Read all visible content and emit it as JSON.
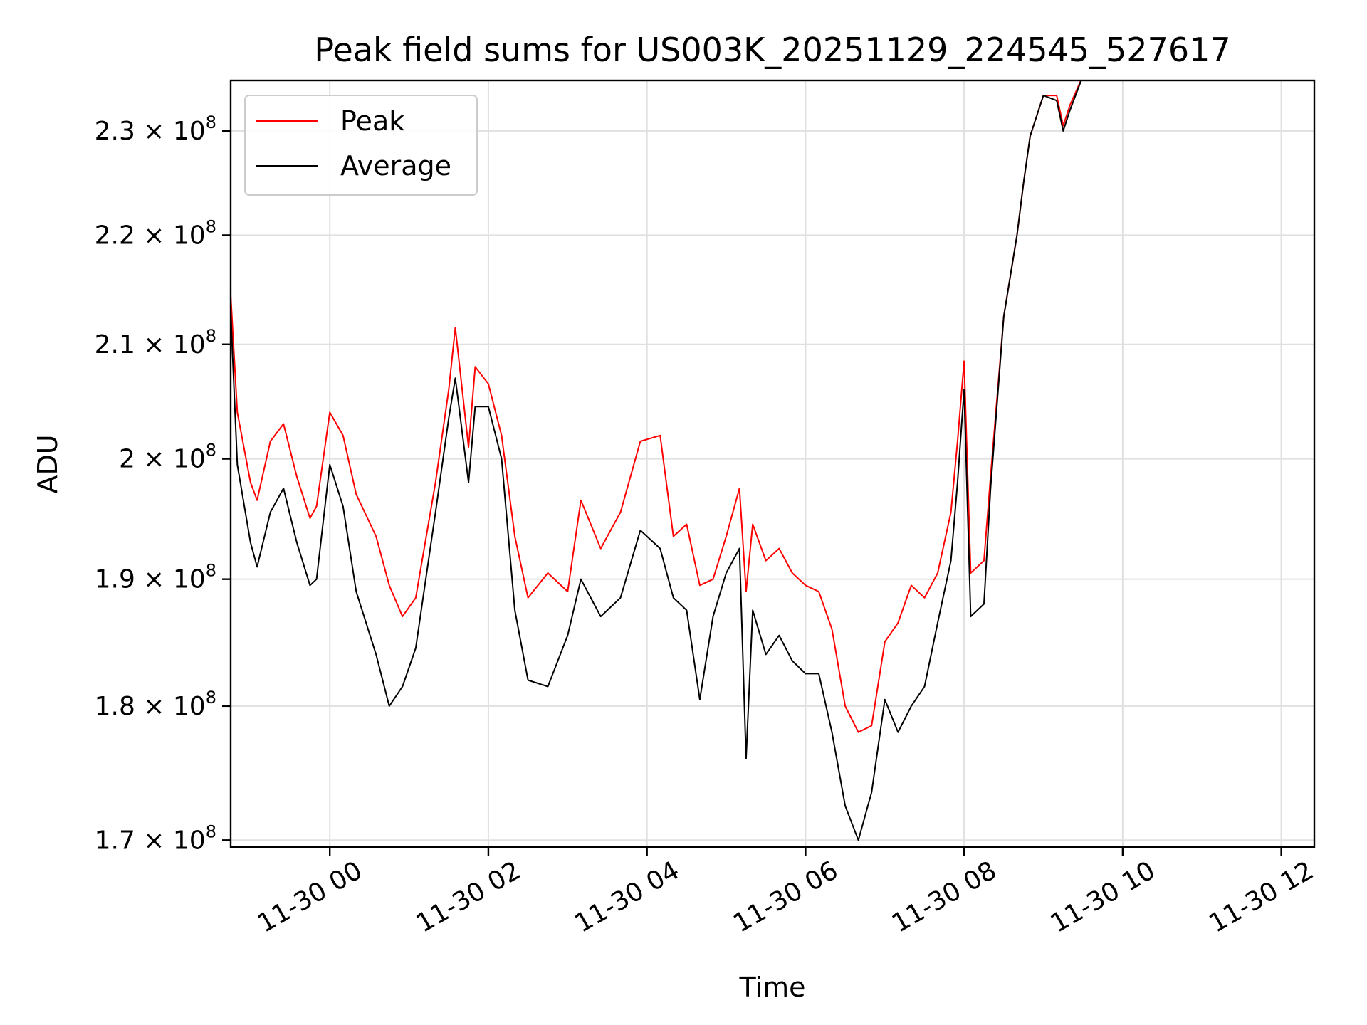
{
  "chart_data": {
    "type": "line",
    "title": "Peak field sums for US003K_20251129_224545_527617",
    "xlabel": "Time",
    "ylabel": "ADU",
    "y_scale": "log",
    "ylim": [
      169500000,
      235000000
    ],
    "xlim": [
      "2025-11-29 22:45",
      "2025-11-30 12:25"
    ],
    "grid": true,
    "legend_position": "top-left",
    "x_ticks": [
      {
        "value": "2025-11-30 00:00",
        "label": "11-30 00"
      },
      {
        "value": "2025-11-30 02:00",
        "label": "11-30 02"
      },
      {
        "value": "2025-11-30 04:00",
        "label": "11-30 04"
      },
      {
        "value": "2025-11-30 06:00",
        "label": "11-30 06"
      },
      {
        "value": "2025-11-30 08:00",
        "label": "11-30 08"
      },
      {
        "value": "2025-11-30 10:00",
        "label": "11-30 10"
      },
      {
        "value": "2025-11-30 12:00",
        "label": "11-30 12"
      }
    ],
    "y_ticks": [
      {
        "value": 170000000,
        "mantissa": "1.7",
        "exponent": "8"
      },
      {
        "value": 180000000,
        "mantissa": "1.8",
        "exponent": "8"
      },
      {
        "value": 190000000,
        "mantissa": "1.9",
        "exponent": "8"
      },
      {
        "value": 200000000,
        "mantissa": "2",
        "exponent": "8"
      },
      {
        "value": 210000000,
        "mantissa": "2.1",
        "exponent": "8"
      },
      {
        "value": 220000000,
        "mantissa": "2.2",
        "exponent": "8"
      },
      {
        "value": 230000000,
        "mantissa": "2.3",
        "exponent": "8"
      }
    ],
    "tick_times_text": "× 10",
    "x": [
      "2025-11-29 22:45",
      "2025-11-29 22:50",
      "2025-11-29 23:00",
      "2025-11-29 23:05",
      "2025-11-29 23:15",
      "2025-11-29 23:25",
      "2025-11-29 23:35",
      "2025-11-29 23:45",
      "2025-11-29 23:50",
      "2025-11-30 00:00",
      "2025-11-30 00:10",
      "2025-11-30 00:20",
      "2025-11-30 00:35",
      "2025-11-30 00:45",
      "2025-11-30 00:55",
      "2025-11-30 01:05",
      "2025-11-30 01:20",
      "2025-11-30 01:30",
      "2025-11-30 01:35",
      "2025-11-30 01:45",
      "2025-11-30 01:50",
      "2025-11-30 02:00",
      "2025-11-30 02:10",
      "2025-11-30 02:20",
      "2025-11-30 02:30",
      "2025-11-30 02:45",
      "2025-11-30 03:00",
      "2025-11-30 03:10",
      "2025-11-30 03:25",
      "2025-11-30 03:40",
      "2025-11-30 03:55",
      "2025-11-30 04:10",
      "2025-11-30 04:20",
      "2025-11-30 04:30",
      "2025-11-30 04:40",
      "2025-11-30 04:50",
      "2025-11-30 05:00",
      "2025-11-30 05:10",
      "2025-11-30 05:15",
      "2025-11-30 05:20",
      "2025-11-30 05:30",
      "2025-11-30 05:40",
      "2025-11-30 05:50",
      "2025-11-30 06:00",
      "2025-11-30 06:10",
      "2025-11-30 06:20",
      "2025-11-30 06:30",
      "2025-11-30 06:40",
      "2025-11-30 06:50",
      "2025-11-30 07:00",
      "2025-11-30 07:10",
      "2025-11-30 07:20",
      "2025-11-30 07:30",
      "2025-11-30 07:40",
      "2025-11-30 07:50",
      "2025-11-30 07:55",
      "2025-11-30 08:00",
      "2025-11-30 08:05",
      "2025-11-30 08:15",
      "2025-11-30 08:20",
      "2025-11-30 08:30",
      "2025-11-30 08:40",
      "2025-11-30 08:45",
      "2025-11-30 08:50",
      "2025-11-30 09:00",
      "2025-11-30 09:10",
      "2025-11-30 09:15",
      "2025-11-30 09:20",
      "2025-11-30 09:30"
    ],
    "series": [
      {
        "name": "Peak",
        "color": "#ff0000",
        "values": [
          214500000,
          204000000,
          198000000,
          196500000,
          201500000,
          203000000,
          198500000,
          195000000,
          196000000,
          204000000,
          202000000,
          197000000,
          193500000,
          189500000,
          187000000,
          188500000,
          198000000,
          206000000,
          211500000,
          201000000,
          208000000,
          206500000,
          202000000,
          193500000,
          188500000,
          190500000,
          189000000,
          196500000,
          192500000,
          195500000,
          201500000,
          202000000,
          193500000,
          194500000,
          189500000,
          190000000,
          193500000,
          197500000,
          189000000,
          194500000,
          191500000,
          192500000,
          190500000,
          189500000,
          189000000,
          186000000,
          180000000,
          178000000,
          178500000,
          185000000,
          186500000,
          189500000,
          188500000,
          190500000,
          195500000,
          201500000,
          208500000,
          190500000,
          191500000,
          198500000,
          212500000,
          220000000,
          225000000,
          229500000,
          233500000,
          233500000,
          230500000,
          232500000,
          235500000
        ]
      },
      {
        "name": "Average",
        "color": "#000000",
        "values": [
          213000000,
          199500000,
          193000000,
          191000000,
          195500000,
          197500000,
          193000000,
          189500000,
          190000000,
          199500000,
          196000000,
          189000000,
          184000000,
          180000000,
          181500000,
          184500000,
          195500000,
          203500000,
          207000000,
          198000000,
          204500000,
          204500000,
          200000000,
          187500000,
          182000000,
          181500000,
          185500000,
          190000000,
          187000000,
          188500000,
          194000000,
          192500000,
          188500000,
          187500000,
          180500000,
          187000000,
          190500000,
          192500000,
          176000000,
          187500000,
          184000000,
          185500000,
          183500000,
          182500000,
          182500000,
          178000000,
          172500000,
          170000000,
          173500000,
          180500000,
          178000000,
          180000000,
          181500000,
          186500000,
          191500000,
          198000000,
          206000000,
          187000000,
          188000000,
          197500000,
          212500000,
          220000000,
          225000000,
          229500000,
          233500000,
          233000000,
          230000000,
          232000000,
          235500000
        ]
      }
    ]
  }
}
